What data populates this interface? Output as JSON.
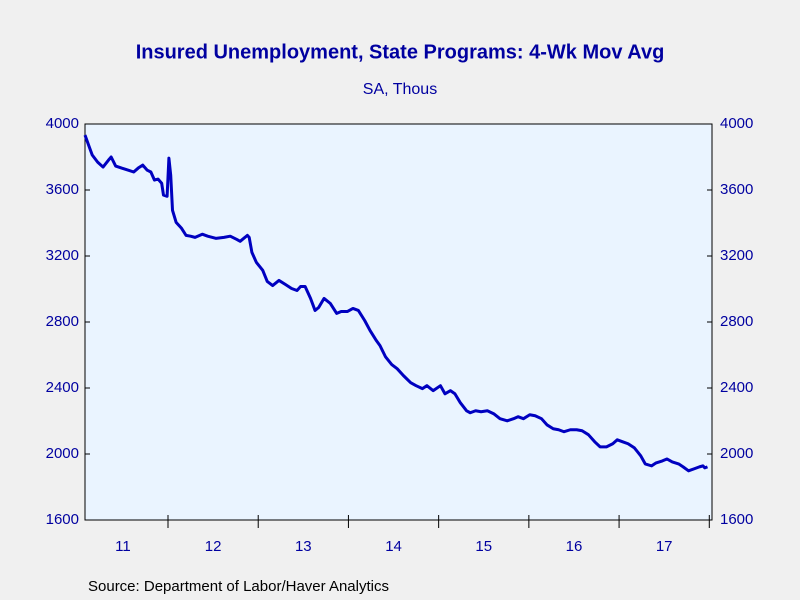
{
  "chart_data": {
    "type": "line",
    "title": "Insured Unemployment, State Programs: 4-Wk Mov Avg",
    "subtitle": "SA, Thous",
    "source": "Source:  Department of Labor/Haver Analytics",
    "x": [
      2011.08,
      2011.12,
      2011.16,
      2011.22,
      2011.28,
      2011.34,
      2011.37,
      2011.42,
      2011.49,
      2011.56,
      2011.62,
      2011.67,
      2011.72,
      2011.77,
      2011.81,
      2011.85,
      2011.89,
      2011.93,
      2011.95,
      2011.99,
      2012.01,
      2012.03,
      2012.05,
      2012.09,
      2012.15,
      2012.2,
      2012.25,
      2012.3,
      2012.38,
      2012.44,
      2012.53,
      2012.62,
      2012.69,
      2012.76,
      2012.8,
      2012.84,
      2012.88,
      2012.9,
      2012.93,
      2012.98,
      2013.05,
      2013.1,
      2013.16,
      2013.23,
      2013.3,
      2013.37,
      2013.43,
      2013.47,
      2013.52,
      2013.58,
      2013.63,
      2013.67,
      2013.73,
      2013.8,
      2013.87,
      2013.92,
      2013.99,
      2014.05,
      2014.11,
      2014.18,
      2014.24,
      2014.31,
      2014.35,
      2014.41,
      2014.48,
      2014.54,
      2014.61,
      2014.69,
      2014.75,
      2014.82,
      2014.87,
      2014.94,
      2015.02,
      2015.07,
      2015.13,
      2015.18,
      2015.24,
      2015.31,
      2015.35,
      2015.41,
      2015.47,
      2015.54,
      2015.61,
      2015.68,
      2015.76,
      2015.83,
      2015.88,
      2015.94,
      2016.01,
      2016.07,
      2016.14,
      2016.2,
      2016.27,
      2016.33,
      2016.39,
      2016.46,
      2016.53,
      2016.59,
      2016.66,
      2016.73,
      2016.79,
      2016.86,
      2016.93,
      2016.98,
      2017.04,
      2017.1,
      2017.17,
      2017.24,
      2017.29,
      2017.36,
      2017.41,
      2017.48,
      2017.53,
      2017.59,
      2017.66,
      2017.71,
      2017.77,
      2017.83,
      2017.89,
      2017.93,
      2017.95,
      2017.98
    ],
    "series": [
      {
        "color": "#0000c0",
        "values": [
          3933,
          3872,
          3812,
          3769,
          3739,
          3781,
          3800,
          3745,
          3732,
          3720,
          3709,
          3733,
          3751,
          3720,
          3709,
          3660,
          3666,
          3641,
          3569,
          3562,
          3793,
          3690,
          3477,
          3404,
          3368,
          3325,
          3320,
          3313,
          3332,
          3320,
          3307,
          3313,
          3320,
          3301,
          3289,
          3307,
          3325,
          3313,
          3222,
          3161,
          3113,
          3046,
          3021,
          3052,
          3028,
          3003,
          2991,
          3015,
          3015,
          2943,
          2870,
          2888,
          2943,
          2912,
          2852,
          2864,
          2864,
          2882,
          2870,
          2809,
          2748,
          2687,
          2657,
          2590,
          2542,
          2517,
          2475,
          2432,
          2414,
          2396,
          2414,
          2384,
          2414,
          2365,
          2384,
          2365,
          2311,
          2262,
          2250,
          2262,
          2256,
          2262,
          2244,
          2214,
          2201,
          2214,
          2226,
          2214,
          2238,
          2232,
          2214,
          2177,
          2153,
          2147,
          2135,
          2147,
          2147,
          2141,
          2117,
          2074,
          2043,
          2043,
          2062,
          2086,
          2074,
          2062,
          2037,
          1989,
          1940,
          1928,
          1946,
          1958,
          1970,
          1952,
          1940,
          1922,
          1898,
          1910,
          1922,
          1928,
          1916,
          1922
        ]
      }
    ],
    "xlim": [
      2011.08,
      2018.03
    ],
    "xticks": [
      {
        "value": 2011.5,
        "label": "11"
      },
      {
        "value": 2012.5,
        "label": "12"
      },
      {
        "value": 2013.5,
        "label": "13"
      },
      {
        "value": 2014.5,
        "label": "14"
      },
      {
        "value": 2015.5,
        "label": "15"
      },
      {
        "value": 2016.5,
        "label": "16"
      },
      {
        "value": 2017.5,
        "label": "17"
      }
    ],
    "xminorticks": [
      2012,
      2013,
      2014,
      2015,
      2016,
      2017,
      2018
    ],
    "ylim": [
      1600,
      4000
    ],
    "yticks": [
      1600,
      2000,
      2400,
      2800,
      3200,
      3600,
      4000
    ],
    "y2lim": [
      1600,
      4000
    ],
    "y2ticks": [
      1600,
      2000,
      2400,
      2800,
      3200,
      3600,
      4000
    ]
  }
}
